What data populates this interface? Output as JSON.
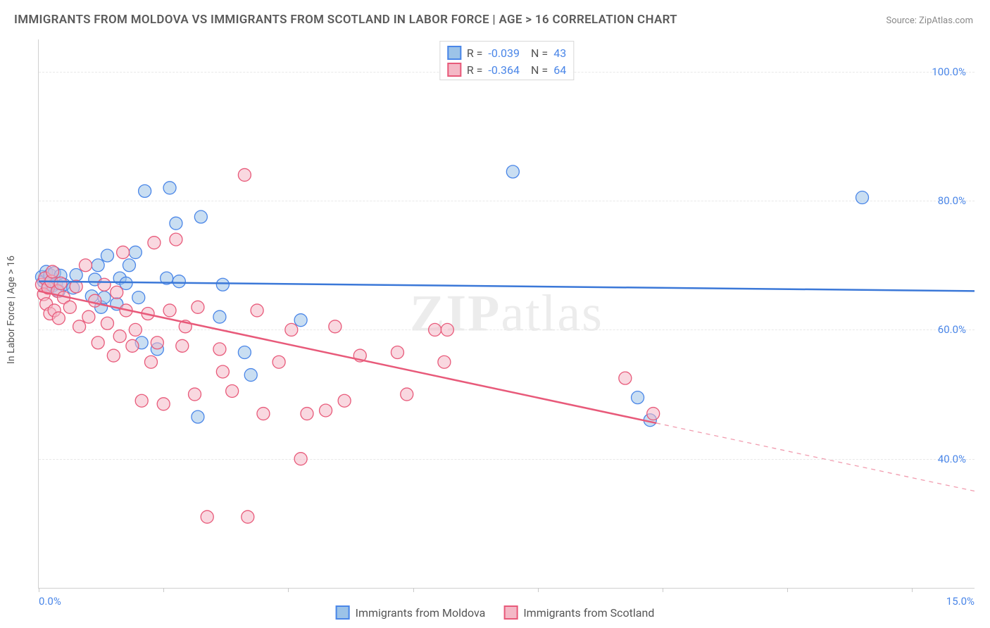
{
  "title": "IMMIGRANTS FROM MOLDOVA VS IMMIGRANTS FROM SCOTLAND IN LABOR FORCE | AGE > 16 CORRELATION CHART",
  "source_prefix": "Source: ",
  "source_name": "ZipAtlas.com",
  "watermark_a": "ZIP",
  "watermark_b": "atlas",
  "chart": {
    "type": "scatter-with-regression",
    "ylabel": "In Labor Force | Age > 16",
    "background_color": "#ffffff",
    "grid_color": "#e8e8e8",
    "axis_color": "#d0d0d0",
    "tick_label_color": "#4a86e8",
    "xlim": [
      0.0,
      15.0
    ],
    "ylim": [
      20.0,
      105.0
    ],
    "yticks": [
      40.0,
      60.0,
      80.0,
      100.0
    ],
    "ytick_labels": [
      "40.0%",
      "60.0%",
      "80.0%",
      "100.0%"
    ],
    "xtick_labels_shown": [
      {
        "v": 0.0,
        "label": "0.0%"
      },
      {
        "v": 15.0,
        "label": "15.0%"
      }
    ],
    "xtick_marks": [
      0.0,
      2.0,
      4.0,
      6.0,
      8.0,
      10.0,
      12.0,
      14.0
    ],
    "marker_radius": 9,
    "marker_opacity": 0.55,
    "line_width": 2.5,
    "title_fontsize": 17,
    "label_fontsize": 14,
    "tick_fontsize": 15,
    "series": [
      {
        "id": "moldova",
        "label": "Immigrants from Moldova",
        "fill_color": "#9cc3e8",
        "stroke_color": "#4a86e8",
        "line_color": "#3b78d8",
        "R": "-0.039",
        "N": "43",
        "regression": {
          "x1": 0.0,
          "y1": 67.5,
          "x2": 15.0,
          "y2": 66.0,
          "solid_until_x": 15.0
        },
        "points": [
          [
            0.05,
            68.2
          ],
          [
            0.08,
            67.5
          ],
          [
            0.12,
            69.0
          ],
          [
            0.15,
            67.0
          ],
          [
            0.18,
            68.5
          ],
          [
            0.22,
            66.8
          ],
          [
            0.25,
            68.8
          ],
          [
            0.28,
            67.2
          ],
          [
            0.32,
            66.0
          ],
          [
            0.35,
            68.4
          ],
          [
            0.4,
            67.0
          ],
          [
            0.55,
            66.5
          ],
          [
            0.6,
            68.5
          ],
          [
            0.85,
            65.2
          ],
          [
            0.9,
            67.8
          ],
          [
            1.0,
            63.5
          ],
          [
            1.05,
            65.0
          ],
          [
            1.1,
            71.5
          ],
          [
            0.95,
            70.0
          ],
          [
            1.25,
            64.0
          ],
          [
            1.3,
            68.0
          ],
          [
            1.4,
            67.2
          ],
          [
            1.45,
            70.0
          ],
          [
            1.55,
            72.0
          ],
          [
            1.6,
            65.0
          ],
          [
            1.65,
            58.0
          ],
          [
            1.7,
            81.5
          ],
          [
            1.9,
            57.0
          ],
          [
            2.05,
            68.0
          ],
          [
            2.1,
            82.0
          ],
          [
            2.2,
            76.5
          ],
          [
            2.25,
            67.5
          ],
          [
            2.55,
            46.5
          ],
          [
            2.6,
            77.5
          ],
          [
            2.9,
            62.0
          ],
          [
            2.95,
            67.0
          ],
          [
            3.3,
            56.5
          ],
          [
            3.4,
            53.0
          ],
          [
            4.2,
            61.5
          ],
          [
            7.6,
            84.5
          ],
          [
            9.6,
            49.5
          ],
          [
            9.8,
            46.0
          ],
          [
            13.2,
            80.5
          ]
        ]
      },
      {
        "id": "scotland",
        "label": "Immigrants from Scotland",
        "fill_color": "#f4b8c6",
        "stroke_color": "#e85a7a",
        "line_color": "#e85a7a",
        "R": "-0.364",
        "N": "64",
        "regression": {
          "x1": 0.0,
          "y1": 66.0,
          "x2": 15.0,
          "y2": 35.0,
          "solid_until_x": 9.9
        },
        "points": [
          [
            0.05,
            67.0
          ],
          [
            0.08,
            65.5
          ],
          [
            0.1,
            68.0
          ],
          [
            0.12,
            64.0
          ],
          [
            0.15,
            66.5
          ],
          [
            0.18,
            62.5
          ],
          [
            0.2,
            67.5
          ],
          [
            0.22,
            69.0
          ],
          [
            0.25,
            63.0
          ],
          [
            0.3,
            66.0
          ],
          [
            0.32,
            61.8
          ],
          [
            0.35,
            67.2
          ],
          [
            0.4,
            65.0
          ],
          [
            0.5,
            63.5
          ],
          [
            0.6,
            66.7
          ],
          [
            0.65,
            60.5
          ],
          [
            0.75,
            70.0
          ],
          [
            0.8,
            62.0
          ],
          [
            0.9,
            64.5
          ],
          [
            0.95,
            58.0
          ],
          [
            1.05,
            67.0
          ],
          [
            1.1,
            61.0
          ],
          [
            1.2,
            56.0
          ],
          [
            1.25,
            65.8
          ],
          [
            1.3,
            59.0
          ],
          [
            1.35,
            72.0
          ],
          [
            1.4,
            63.0
          ],
          [
            1.5,
            57.5
          ],
          [
            1.55,
            60.0
          ],
          [
            1.65,
            49.0
          ],
          [
            1.75,
            62.5
          ],
          [
            1.8,
            55.0
          ],
          [
            1.85,
            73.5
          ],
          [
            1.9,
            58.0
          ],
          [
            2.0,
            48.5
          ],
          [
            2.1,
            63.0
          ],
          [
            2.2,
            74.0
          ],
          [
            2.3,
            57.5
          ],
          [
            2.35,
            60.5
          ],
          [
            2.5,
            50.0
          ],
          [
            2.55,
            63.5
          ],
          [
            2.7,
            31.0
          ],
          [
            2.9,
            57.0
          ],
          [
            2.95,
            53.5
          ],
          [
            3.1,
            50.5
          ],
          [
            3.3,
            84.0
          ],
          [
            3.35,
            31.0
          ],
          [
            3.5,
            63.0
          ],
          [
            3.6,
            47.0
          ],
          [
            3.85,
            55.0
          ],
          [
            4.05,
            60.0
          ],
          [
            4.2,
            40.0
          ],
          [
            4.3,
            47.0
          ],
          [
            4.6,
            47.5
          ],
          [
            4.75,
            60.5
          ],
          [
            4.9,
            49.0
          ],
          [
            5.15,
            56.0
          ],
          [
            5.75,
            56.5
          ],
          [
            5.9,
            50.0
          ],
          [
            6.35,
            60.0
          ],
          [
            6.5,
            55.0
          ],
          [
            6.55,
            60.0
          ],
          [
            9.4,
            52.5
          ],
          [
            9.85,
            47.0
          ]
        ]
      }
    ]
  }
}
